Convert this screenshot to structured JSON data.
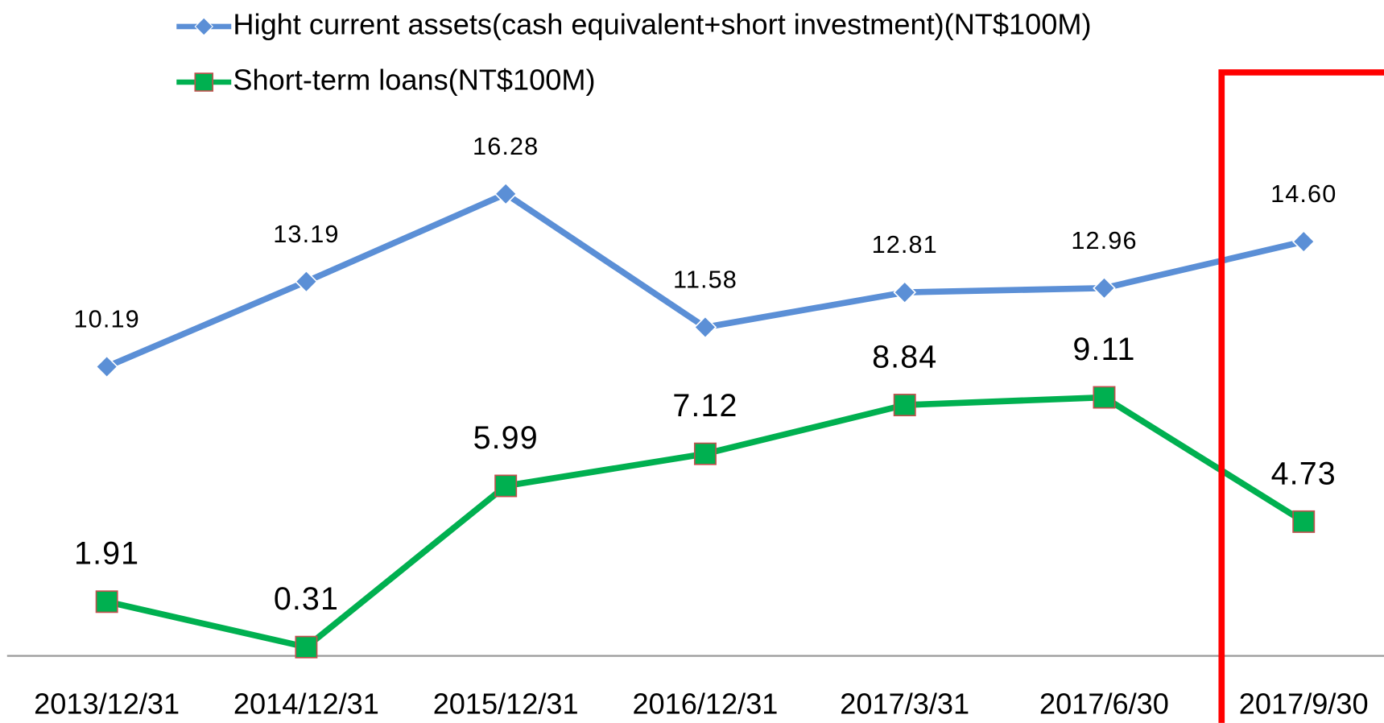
{
  "chart_data": {
    "type": "line",
    "categories": [
      "2013/12/31",
      "2014/12/31",
      "2015/12/31",
      "2016/12/31",
      "2017/3/31",
      "2017/6/30",
      "2017/9/30"
    ],
    "series": [
      {
        "name": "Hight current assets(cash equivalent+short investment)(NT$100M)",
        "color": "#5b8fd6",
        "values": [
          10.19,
          13.19,
          16.28,
          11.58,
          12.81,
          12.96,
          14.6
        ],
        "value_labels": [
          "10.19",
          "13.19",
          "16.28",
          "11.58",
          "12.81",
          "12.96",
          "14.60"
        ]
      },
      {
        "name": "Short-term loans(NT$100M)",
        "color": "#00b050",
        "values": [
          1.91,
          0.31,
          5.99,
          7.12,
          8.84,
          9.11,
          4.73
        ]
      }
    ],
    "ylim": [
      0,
      20
    ]
  }
}
